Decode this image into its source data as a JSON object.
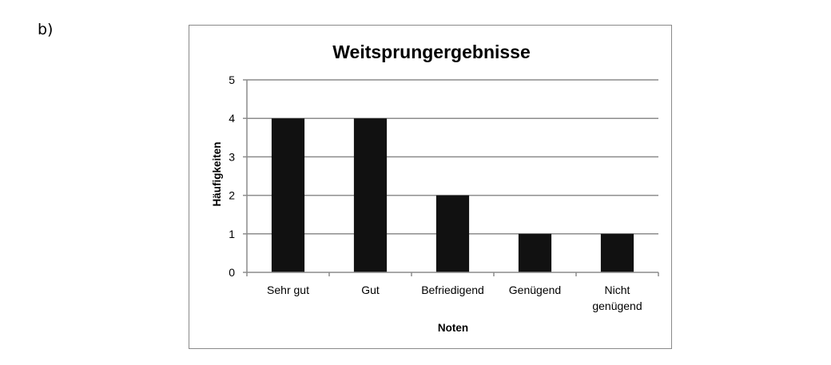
{
  "part_label": "b)",
  "chart_data": {
    "type": "bar",
    "title": "Weitsprungergebnisse",
    "xlabel": "Noten",
    "ylabel": "Häufigkeiten",
    "categories": [
      "Sehr gut",
      "Gut",
      "Befriedigend",
      "Genügend",
      "Nicht genügend"
    ],
    "category_lines": [
      [
        "Sehr gut"
      ],
      [
        "Gut"
      ],
      [
        "Befriedigend"
      ],
      [
        "Genügend"
      ],
      [
        "Nicht",
        "genügend"
      ]
    ],
    "values": [
      4,
      4,
      2,
      1,
      1
    ],
    "ylim": [
      0,
      5
    ],
    "yticks": [
      "0",
      "1",
      "2",
      "3",
      "4",
      "5"
    ],
    "grid": true,
    "legend": "none",
    "bar_color": "#111111",
    "grid_color": "#8c8c8c"
  }
}
